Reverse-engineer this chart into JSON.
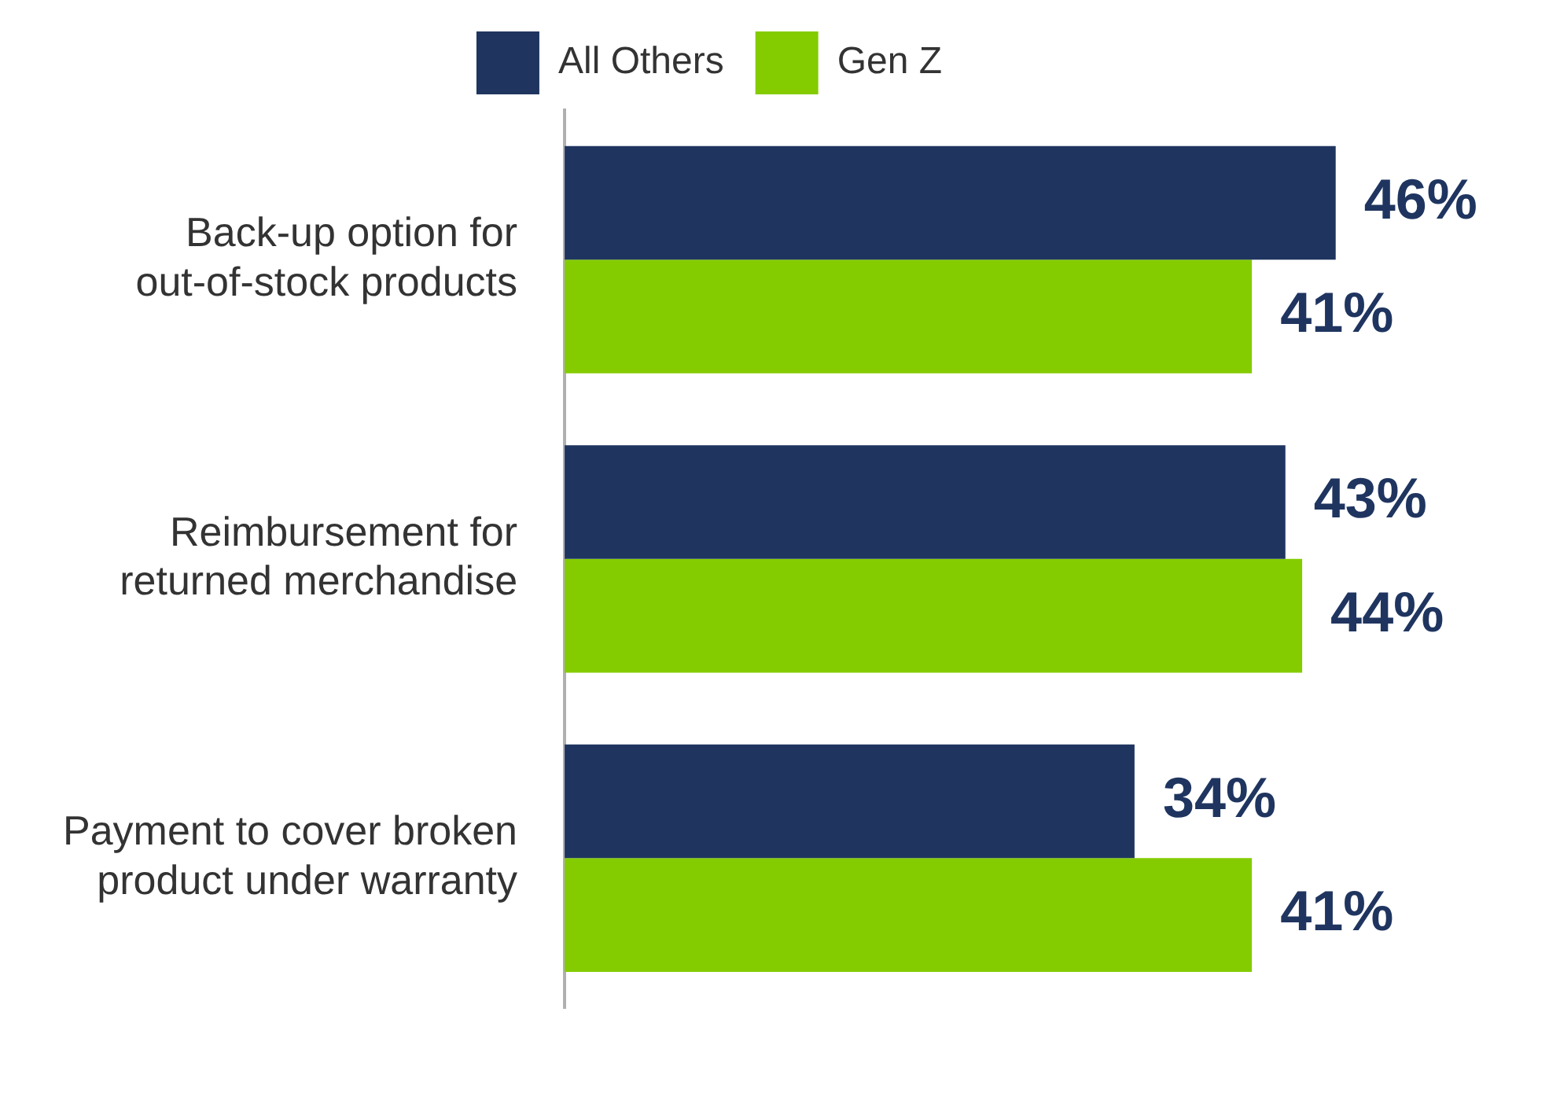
{
  "chart_data": {
    "type": "bar",
    "orientation": "horizontal",
    "categories": [
      "Back-up option for out-of-stock products",
      "Reimbursement for returned merchandise",
      "Payment to cover broken product under warranty"
    ],
    "series": [
      {
        "name": "All Others",
        "color": "#1f3560",
        "values": [
          46,
          43,
          34
        ],
        "value_labels": [
          "46%",
          "43%",
          "34%"
        ]
      },
      {
        "name": "Gen Z",
        "color": "#84cc00",
        "values": [
          41,
          44,
          41
        ],
        "value_labels": [
          "41%",
          "44%",
          "41%"
        ]
      }
    ],
    "legend": "top"
  }
}
